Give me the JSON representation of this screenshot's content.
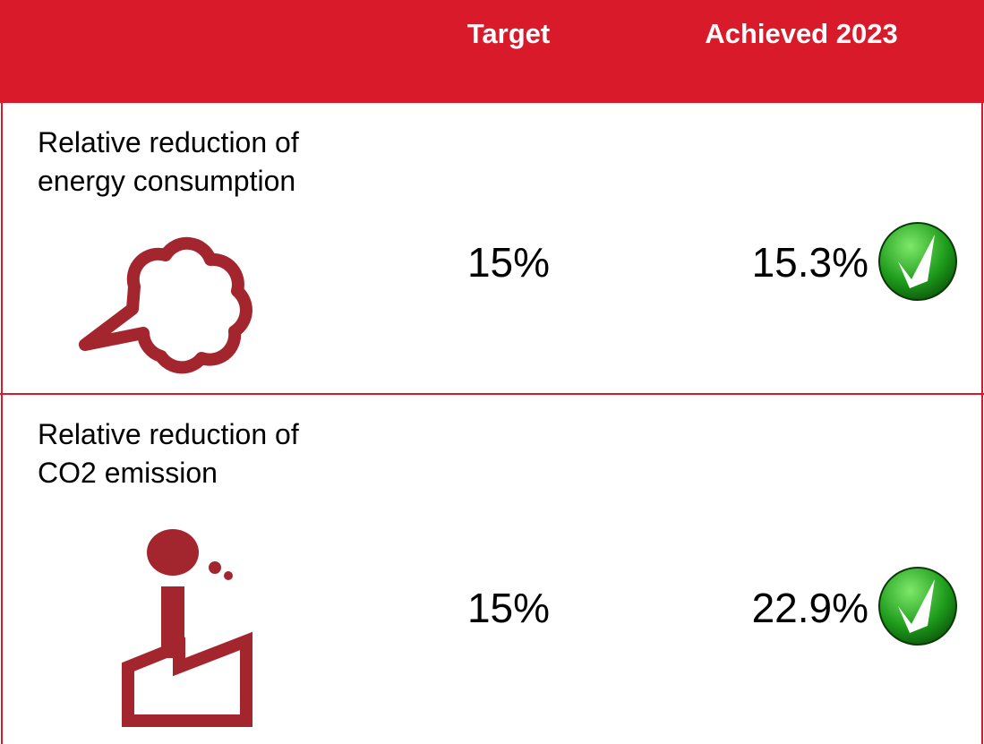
{
  "table": {
    "columns": [
      "Target",
      "Achieved 2023"
    ],
    "rows": [
      {
        "label": "Relative reduction of energy consumption",
        "target": "15%",
        "achieved": "15.3%"
      },
      {
        "label": "Relative reduction of CO2 emission",
        "target": "15%",
        "achieved": "22.9%"
      }
    ]
  }
}
